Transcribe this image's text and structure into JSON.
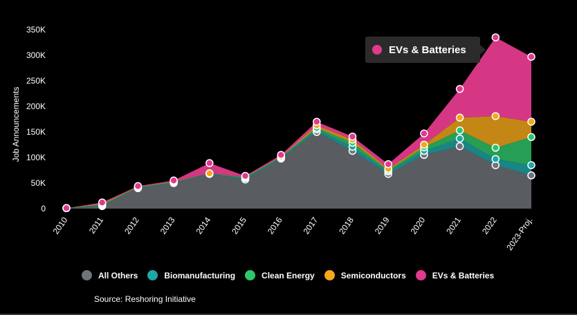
{
  "chart_data": {
    "type": "area",
    "stacked": true,
    "ylabel": "Job Announcements",
    "ylim": [
      0,
      350000
    ],
    "y_ticks": [
      0,
      50000,
      100000,
      150000,
      200000,
      250000,
      300000,
      350000
    ],
    "y_tick_labels": [
      "0",
      "50K",
      "100K",
      "150K",
      "200K",
      "250K",
      "300K",
      "350K"
    ],
    "categories": [
      "2010",
      "2011",
      "2012",
      "2013",
      "2014",
      "2015",
      "2016",
      "2017",
      "2018",
      "2019",
      "2020",
      "2021",
      "2022",
      "2023-Proj."
    ],
    "series": [
      {
        "name": "All Others",
        "color": "#6f747a",
        "values": [
          1000,
          5000,
          40000,
          50000,
          68000,
          57000,
          98000,
          150000,
          113000,
          68000,
          105000,
          122000,
          85000,
          65000
        ]
      },
      {
        "name": "Biomanufacturing",
        "color": "#1fa6a6",
        "values": [
          0,
          2000,
          1000,
          1000,
          0,
          3000,
          2000,
          5000,
          8000,
          5000,
          8000,
          15000,
          12000,
          20000
        ]
      },
      {
        "name": "Clean Energy",
        "color": "#2fc66a",
        "values": [
          0,
          1000,
          1000,
          1000,
          1000,
          1000,
          1000,
          3000,
          8000,
          2000,
          7000,
          16000,
          22000,
          55000
        ]
      },
      {
        "name": "Semiconductors",
        "color": "#f5a81a",
        "values": [
          0,
          2000,
          1000,
          1000,
          0,
          1000,
          1000,
          5000,
          6000,
          3000,
          5000,
          25000,
          62000,
          30000
        ]
      },
      {
        "name": "EVs & Batteries",
        "color": "#e03a8c",
        "values": [
          0,
          2000,
          1000,
          2000,
          20000,
          2000,
          3000,
          7000,
          6000,
          9000,
          22000,
          56000,
          154000,
          127000
        ]
      }
    ],
    "highlighted_series": "EVs & Batteries",
    "grid": false,
    "legend_position": "bottom"
  },
  "tooltip": {
    "label": "EVs & Batteries",
    "color": "#e03a8c"
  },
  "source": "Source: Reshoring Initiative"
}
